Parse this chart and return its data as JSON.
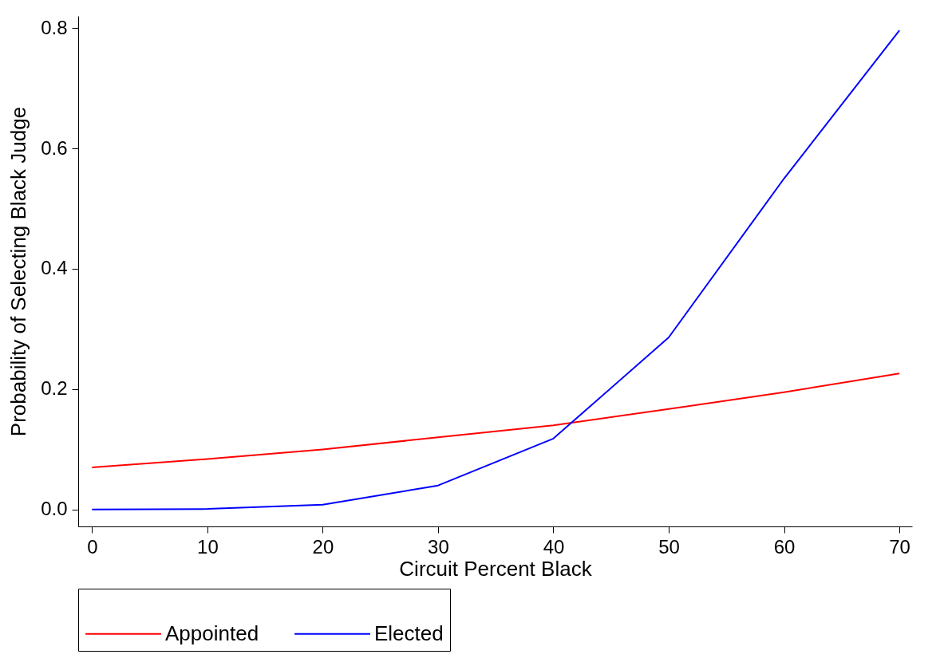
{
  "chart_data": {
    "type": "line",
    "xlabel": "Circuit Percent Black",
    "ylabel": "Probability of Selecting Black Judge",
    "x": [
      0,
      10,
      20,
      30,
      40,
      50,
      60,
      70
    ],
    "series": [
      {
        "name": "Appointed",
        "color": "#ff0000",
        "values": [
          0.07,
          0.084,
          0.1,
          0.12,
          0.14,
          0.167,
          0.195,
          0.226
        ]
      },
      {
        "name": "Elected",
        "color": "#0000ff",
        "values": [
          0.0,
          0.001,
          0.008,
          0.04,
          0.118,
          0.286,
          0.55,
          0.796
        ]
      }
    ],
    "xlim": [
      -1.2,
      71.1
    ],
    "ylim": [
      -0.028,
      0.82
    ],
    "xticks": [
      0,
      10,
      20,
      30,
      40,
      50,
      60,
      70
    ],
    "yticks": [
      {
        "value": 0,
        "label": "0.0"
      },
      {
        "value": 0.2,
        "label": "0.2"
      },
      {
        "value": 0.4,
        "label": "0.4"
      },
      {
        "value": 0.6,
        "label": "0.6"
      },
      {
        "value": 0.8,
        "label": "0.8"
      }
    ],
    "grid": false,
    "legend": "bottom"
  }
}
